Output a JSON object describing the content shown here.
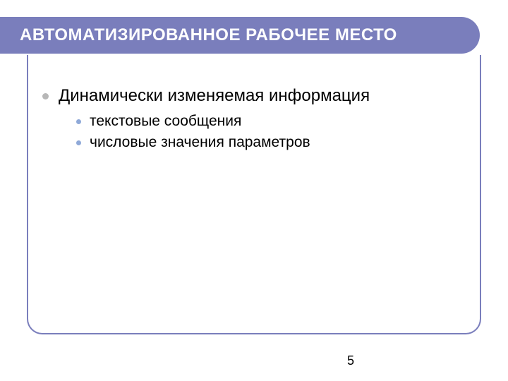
{
  "slide": {
    "title": "АВТОМАТИЗИРОВАННОЕ РАБОЧЕЕ МЕСТО",
    "title_bg": "#7a7ebc",
    "title_color": "#ffffff",
    "title_fontsize": 24,
    "border_color": "#7a7ebc",
    "background": "#ffffff",
    "bullet_l1_color": "#b7b7b7",
    "bullet_l2_color": "#8fa9d8",
    "content": {
      "item1": {
        "text": "Динамически изменяемая информация",
        "subitems": {
          "s1": "текстовые сообщения",
          "s2": "числовые значения параметров"
        }
      }
    },
    "page_number": "5"
  }
}
